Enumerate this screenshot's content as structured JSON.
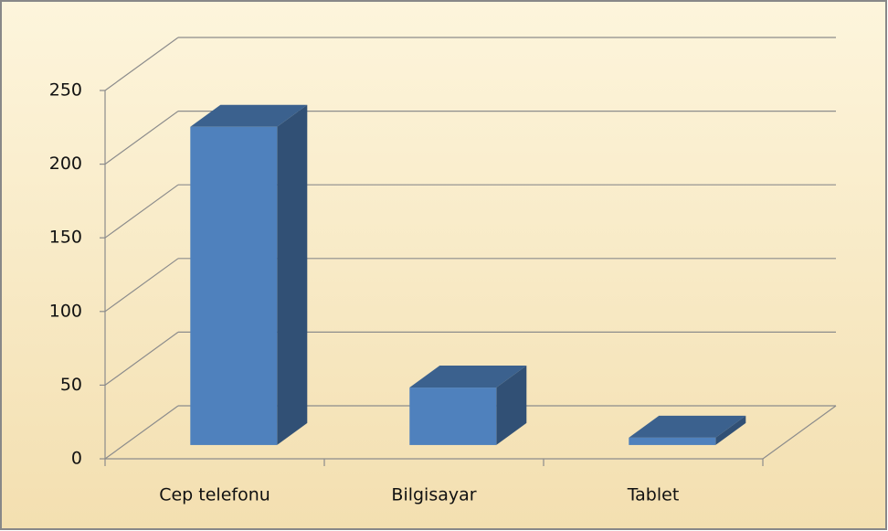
{
  "chart_data": {
    "type": "bar3d",
    "categories": [
      "Cep telefonu",
      "Bilgisayar",
      "Tablet"
    ],
    "values": [
      216,
      39,
      5
    ],
    "color": "#4f81bd",
    "ylim": [
      0,
      250
    ],
    "yticks": [
      0,
      50,
      100,
      150,
      200,
      250
    ],
    "grid": true
  }
}
